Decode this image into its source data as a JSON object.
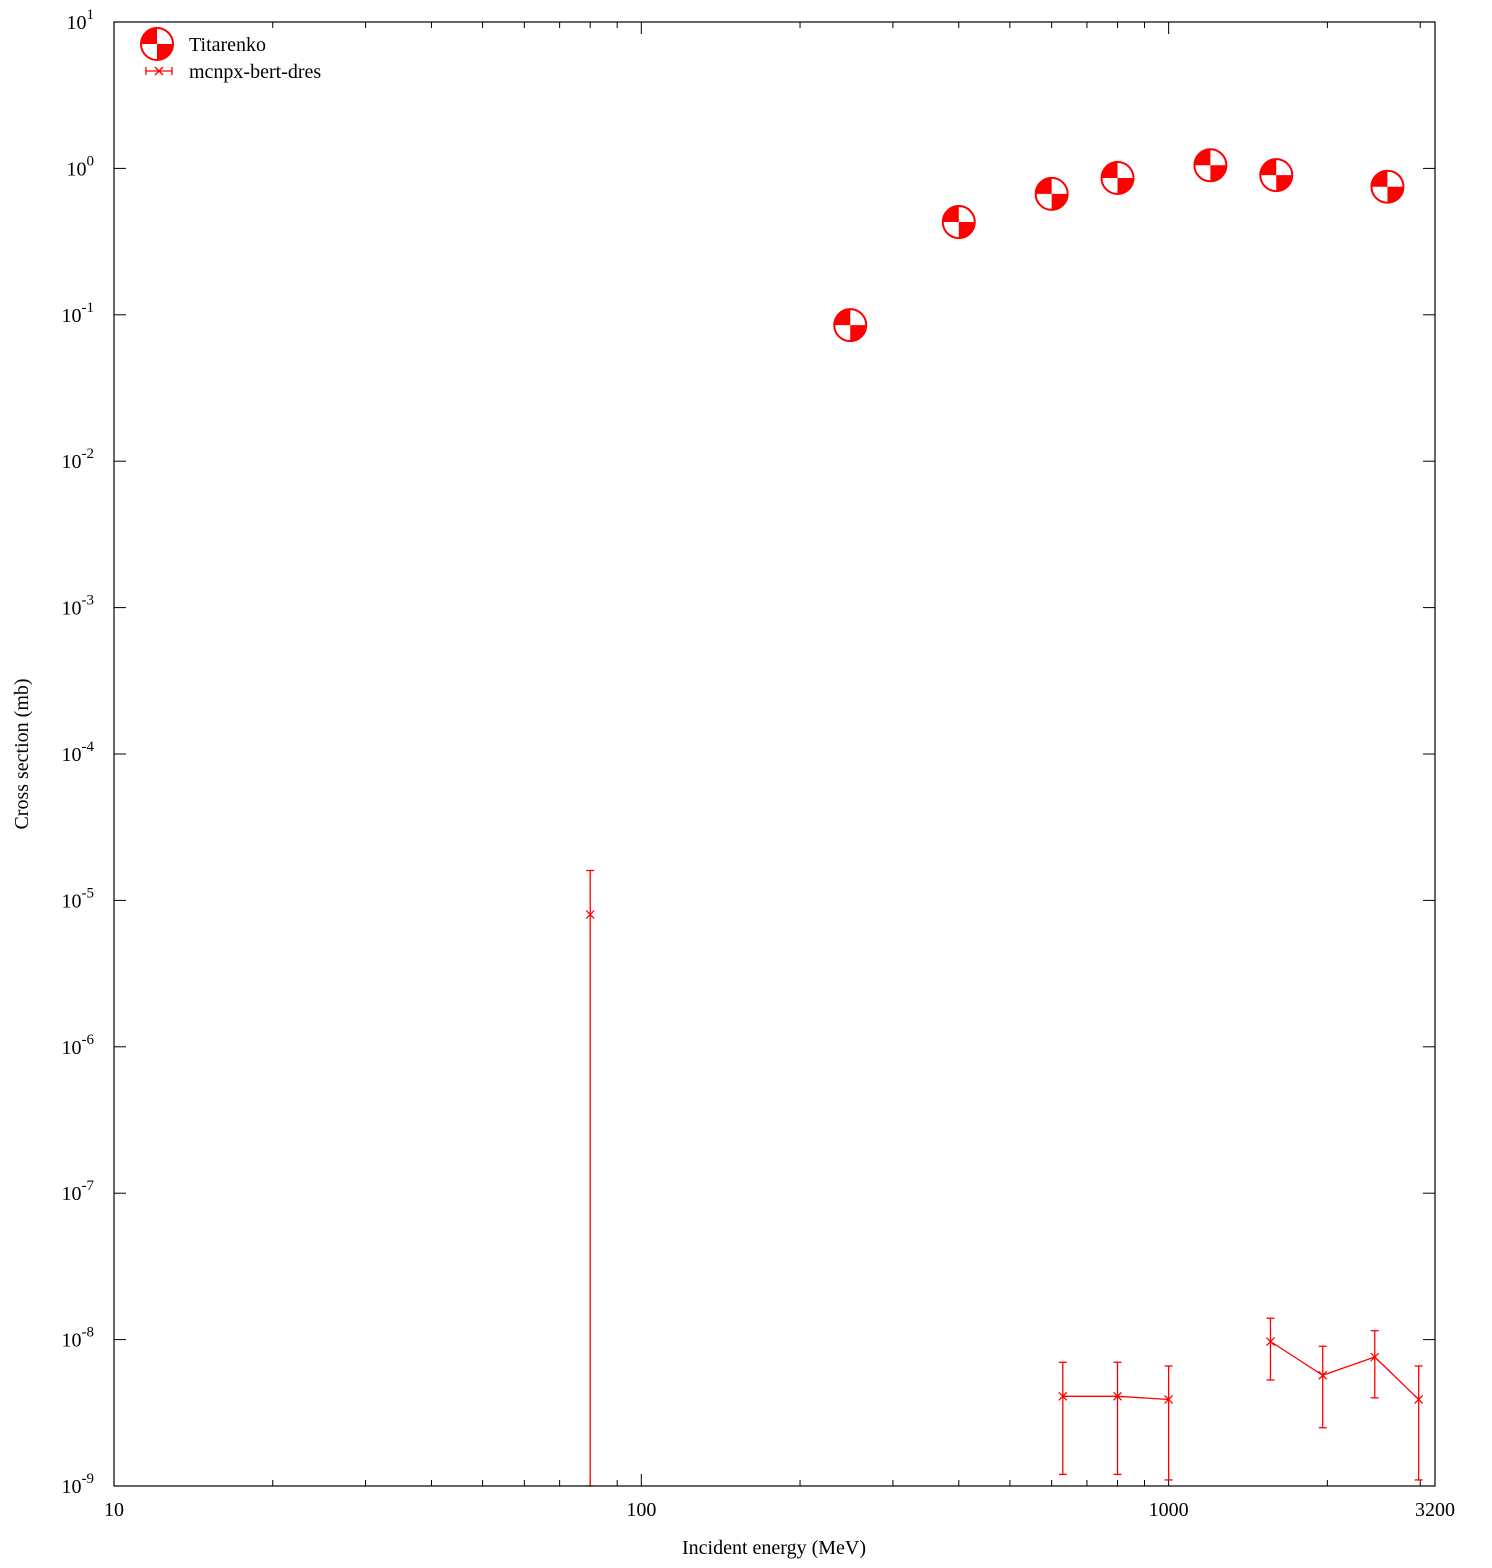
{
  "chart_data": {
    "type": "scatter",
    "title": "",
    "xlabel": "Incident energy (MeV)",
    "ylabel": "Cross section (mb)",
    "xscale": "log",
    "yscale": "log",
    "xlim": [
      10,
      3200
    ],
    "ylim": [
      1e-09,
      10
    ],
    "grid": false,
    "legend_position": "top-left",
    "x_ticks": [
      {
        "value": 10,
        "label": "10"
      },
      {
        "value": 100,
        "label": "100"
      },
      {
        "value": 1000,
        "label": "1000"
      },
      {
        "value": 3200,
        "label": "3200"
      }
    ],
    "y_ticks": [
      {
        "value": 10,
        "base": "10",
        "exp": "1"
      },
      {
        "value": 1,
        "base": "10",
        "exp": "0"
      },
      {
        "value": 0.1,
        "base": "10",
        "exp": "-1"
      },
      {
        "value": 0.01,
        "base": "10",
        "exp": "-2"
      },
      {
        "value": 0.001,
        "base": "10",
        "exp": "-3"
      },
      {
        "value": 0.0001,
        "base": "10",
        "exp": "-4"
      },
      {
        "value": 1e-05,
        "base": "10",
        "exp": "-5"
      },
      {
        "value": 1e-06,
        "base": "10",
        "exp": "-6"
      },
      {
        "value": 1e-07,
        "base": "10",
        "exp": "-7"
      },
      {
        "value": 1e-08,
        "base": "10",
        "exp": "-8"
      },
      {
        "value": 1e-09,
        "base": "10",
        "exp": "-9"
      }
    ],
    "series": [
      {
        "name": "Titarenko",
        "style": "points",
        "marker": "checkered-circle",
        "color": "#ff0000",
        "points": [
          {
            "x": 249,
            "y": 0.085,
            "ylow": 0.067,
            "yhigh": 0.1
          },
          {
            "x": 400,
            "y": 0.43,
            "ylow": 0.38,
            "yhigh": 0.48
          },
          {
            "x": 600,
            "y": 0.67,
            "ylow": 0.6,
            "yhigh": 0.74
          },
          {
            "x": 800,
            "y": 0.86,
            "ylow": 0.78,
            "yhigh": 0.94
          },
          {
            "x": 1200,
            "y": 1.05,
            "ylow": 0.95,
            "yhigh": 1.15
          },
          {
            "x": 1600,
            "y": 0.9,
            "ylow": 0.81,
            "yhigh": 0.99
          },
          {
            "x": 2600,
            "y": 0.75,
            "ylow": 0.68,
            "yhigh": 0.82
          }
        ]
      },
      {
        "name": "mcnpx-bert-dres",
        "style": "linespoints-errorbars",
        "marker": "x",
        "color": "#ff0000",
        "points": [
          {
            "x": 80,
            "y": 8e-06,
            "ylow": 1e-09,
            "yhigh": 1.6e-05
          },
          {
            "x": 630,
            "y": 4.1e-09,
            "ylow": 1.2e-09,
            "yhigh": 7e-09
          },
          {
            "x": 800,
            "y": 4.1e-09,
            "ylow": 1.2e-09,
            "yhigh": 7e-09
          },
          {
            "x": 1000,
            "y": 3.9e-09,
            "ylow": 1.1e-09,
            "yhigh": 6.6e-09
          },
          {
            "x": 1560,
            "y": 9.7e-09,
            "ylow": 5.3e-09,
            "yhigh": 1.4e-08
          },
          {
            "x": 1960,
            "y": 5.7e-09,
            "ylow": 2.5e-09,
            "yhigh": 9e-09
          },
          {
            "x": 2460,
            "y": 7.6e-09,
            "ylow": 4e-09,
            "yhigh": 1.15e-08
          },
          {
            "x": 2980,
            "y": 3.9e-09,
            "ylow": 1.1e-09,
            "yhigh": 6.6e-09
          }
        ],
        "segments": [
          [
            1,
            2,
            3
          ],
          [
            4,
            5,
            6,
            7
          ]
        ]
      }
    ]
  }
}
